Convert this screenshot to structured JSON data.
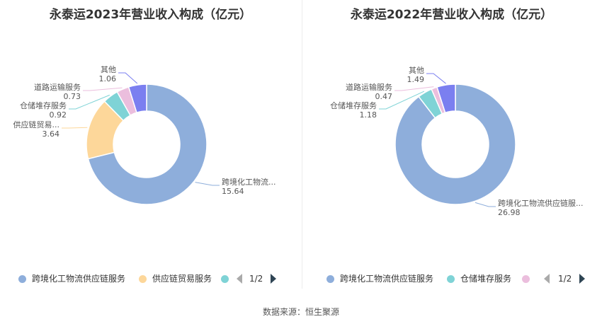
{
  "chart_data": [
    {
      "type": "pie",
      "title": "永泰运2023年营业收入构成（亿元）",
      "slices": [
        {
          "name": "跨境化工物流供应链服务",
          "label": "跨境化工物流...",
          "value": 15.64,
          "color": "#8eaedb"
        },
        {
          "name": "供应链贸易服务",
          "label": "供应链贸易...",
          "value": 3.64,
          "color": "#fdd79a"
        },
        {
          "name": "仓储堆存服务",
          "label": "仓储堆存服务",
          "value": 0.92,
          "color": "#7fd3d6"
        },
        {
          "name": "道路运输服务",
          "label": "道路运输服务",
          "value": 0.73,
          "color": "#ebbedd"
        },
        {
          "name": "其他",
          "label": "其他",
          "value": 1.06,
          "color": "#7b7ff0"
        }
      ],
      "legend": {
        "items": [
          {
            "name": "跨境化工物流供应链服务",
            "color": "#8eaedb"
          },
          {
            "name": "供应链贸易服务",
            "color": "#fdd79a"
          },
          {
            "name": "",
            "color": "#7fd3d6"
          }
        ],
        "page": "1/2",
        "position": "bottom"
      }
    },
    {
      "type": "pie",
      "title": "永泰运2022年营业收入构成（亿元）",
      "slices": [
        {
          "name": "跨境化工物流供应链服务",
          "label": "跨境化工物流供应链服...",
          "value": 26.98,
          "color": "#8eaedb"
        },
        {
          "name": "仓储堆存服务",
          "label": "仓储堆存服务",
          "value": 1.18,
          "color": "#7fd3d6"
        },
        {
          "name": "道路运输服务",
          "label": "道路运输服务",
          "value": 0.47,
          "color": "#ebbedd"
        },
        {
          "name": "其他",
          "label": "其他",
          "value": 1.49,
          "color": "#7b7ff0"
        }
      ],
      "legend": {
        "items": [
          {
            "name": "跨境化工物流供应链服务",
            "color": "#8eaedb"
          },
          {
            "name": "仓储堆存服务",
            "color": "#7fd3d6"
          },
          {
            "name": "",
            "color": "#ebbedd"
          }
        ],
        "page": "1/2",
        "position": "bottom"
      }
    }
  ],
  "source": "数据来源：恒生聚源"
}
